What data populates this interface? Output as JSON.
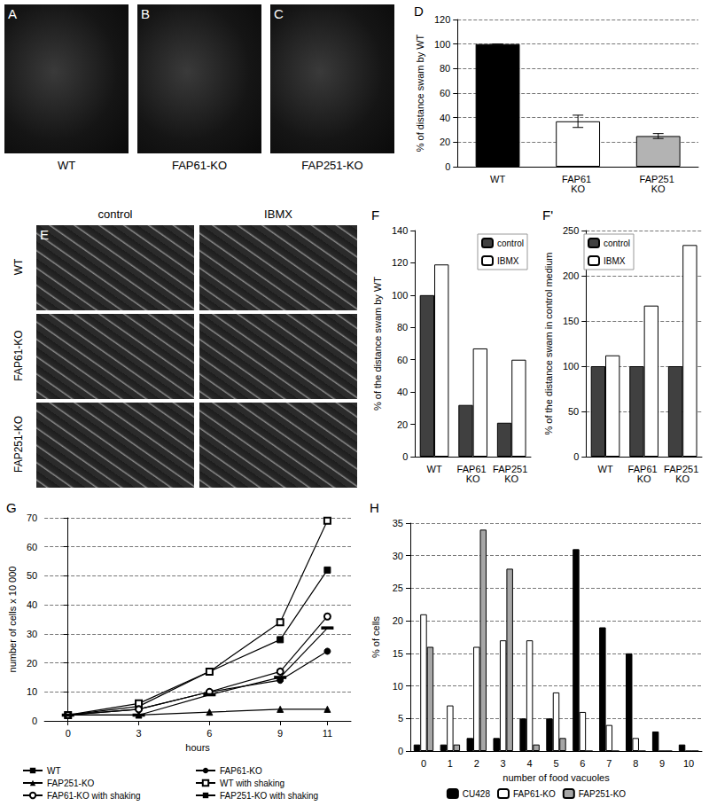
{
  "image_panels": [
    {
      "panel": "A",
      "label": "WT"
    },
    {
      "panel": "B",
      "label": "FAP61-KO"
    },
    {
      "panel": "C",
      "label": "FAP251-KO"
    },
    {
      "panel": "E",
      "columns": [
        "control",
        "IBMX"
      ],
      "rows": [
        "WT",
        "FAP61-KO",
        "FAP251-KO"
      ]
    }
  ],
  "chart_data": [
    {
      "panel": "D",
      "type": "bar",
      "categories": [
        "WT",
        "FAP61 KO",
        "FAP251 KO"
      ],
      "values": [
        100,
        37,
        25
      ],
      "errors": [
        0,
        5,
        2
      ],
      "colors": [
        "#000000",
        "#ffffff",
        "#b3b3b3"
      ],
      "ylabel": "% of distance swam by WT",
      "ylim": [
        0,
        120
      ],
      "yticks": [
        0,
        20,
        40,
        60,
        80,
        100,
        120
      ],
      "grid": true
    },
    {
      "panel": "F",
      "type": "bar",
      "categories": [
        "WT",
        "FAP61 KO",
        "FAP251 KO"
      ],
      "series": [
        {
          "name": "control",
          "color": "#404040",
          "values": [
            100,
            32,
            21
          ]
        },
        {
          "name": "IBMX",
          "color": "#ffffff",
          "values": [
            119,
            67,
            60
          ]
        }
      ],
      "ylabel": "% of the distance swam by WT",
      "ylim": [
        0,
        140
      ],
      "yticks": [
        0,
        20,
        40,
        60,
        80,
        100,
        120,
        140
      ],
      "grid": false,
      "legend": "top-right"
    },
    {
      "panel": "F'",
      "type": "bar",
      "categories": [
        "WT",
        "FAP61 KO",
        "FAP251 KO"
      ],
      "series": [
        {
          "name": "control",
          "color": "#404040",
          "values": [
            100,
            100,
            100
          ]
        },
        {
          "name": "IBMX",
          "color": "#ffffff",
          "values": [
            112,
            167,
            234
          ]
        }
      ],
      "ylabel": "% of the distance swam in control medium",
      "ylim": [
        0,
        250
      ],
      "yticks": [
        0,
        50,
        100,
        150,
        200,
        250
      ],
      "grid": true,
      "legend": "top-left"
    },
    {
      "panel": "G",
      "type": "line",
      "x": [
        0,
        3,
        6,
        9,
        11
      ],
      "xlabel": "hours",
      "ylabel": "number of cells x 10 000",
      "series": [
        {
          "name": "WT",
          "color": "#000000",
          "marker": "square",
          "values": [
            2,
            5,
            17,
            28,
            52
          ]
        },
        {
          "name": "FAP61-KO",
          "color": "#000000",
          "marker": "circle",
          "values": [
            2,
            4,
            10,
            14,
            24
          ]
        },
        {
          "name": "FAP251-KO",
          "color": "#000000",
          "marker": "triangle",
          "values": [
            2,
            2,
            3,
            4,
            4
          ]
        },
        {
          "name": "WT with shaking",
          "color": "#000000",
          "marker": "square-open",
          "values": [
            2,
            6,
            17,
            34,
            69
          ]
        },
        {
          "name": "FAP61-KO with shaking",
          "color": "#000000",
          "marker": "circle-open",
          "values": [
            2,
            4,
            10,
            17,
            36
          ]
        },
        {
          "name": "FAP251-KO with shaking",
          "color": "#000000",
          "marker": "dash",
          "values": [
            2,
            2,
            9,
            15,
            32
          ]
        }
      ],
      "xlim": [
        -1,
        12
      ],
      "xticks": [
        0,
        3,
        6,
        9,
        11
      ],
      "ylim": [
        0,
        70
      ],
      "yticks": [
        0,
        10,
        20,
        30,
        40,
        50,
        60,
        70
      ],
      "grid": true,
      "legend": "bottom"
    },
    {
      "panel": "H",
      "type": "bar",
      "categories": [
        "0",
        "1",
        "2",
        "3",
        "4",
        "5",
        "6",
        "7",
        "8",
        "9",
        "10"
      ],
      "xlabel": "number of food vacuoles",
      "ylabel": "% of cells",
      "series": [
        {
          "name": "CU428",
          "color": "#000000",
          "values": [
            1,
            1,
            2,
            2,
            5,
            5,
            31,
            19,
            15,
            3,
            1
          ]
        },
        {
          "name": "FAP61-KO",
          "color": "#ffffff",
          "values": [
            21,
            7,
            16,
            17,
            17,
            9,
            6,
            4,
            2,
            0,
            0
          ]
        },
        {
          "name": "FAP251-KO",
          "color": "#a6a6a6",
          "values": [
            16,
            1,
            34,
            28,
            1,
            2,
            0,
            0,
            0,
            0,
            0
          ]
        }
      ],
      "ylim": [
        0,
        35
      ],
      "yticks": [
        0,
        5,
        10,
        15,
        20,
        25,
        30,
        35
      ],
      "grid": true,
      "legend": "bottom"
    }
  ]
}
